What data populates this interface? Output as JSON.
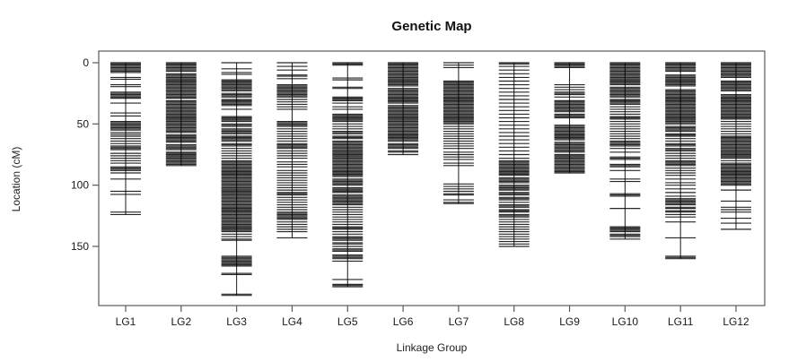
{
  "chart_data": {
    "type": "genetic-map",
    "title": "Genetic Map",
    "xlabel": "Linkage Group",
    "ylabel": "Location (cM)",
    "y_axis": {
      "ticks": [
        0,
        50,
        100,
        150
      ],
      "unit": "cM",
      "direction": "increasing-downward",
      "ylim": [
        0,
        198
      ]
    },
    "frame_color": "#5a5a5a",
    "marker_color": "#000000",
    "linkage_groups": [
      {
        "label": "LG1",
        "length": 124,
        "markers": [
          0,
          1,
          2,
          3,
          4,
          5,
          6,
          7,
          8,
          12,
          13.5,
          18,
          19.5,
          24,
          25,
          26,
          27,
          28,
          29,
          33,
          41,
          43.5,
          48,
          49,
          50,
          51,
          52,
          53,
          54,
          55,
          57,
          58.5,
          60,
          62,
          64,
          66,
          68,
          69,
          70,
          71,
          74,
          76,
          78,
          80,
          82,
          85,
          86,
          87,
          88,
          90,
          95,
          105,
          107.5,
          122,
          124
        ]
      },
      {
        "label": "LG2",
        "length": 84,
        "markers": [
          0,
          1,
          2,
          3,
          4,
          5,
          6,
          7,
          9,
          10,
          11,
          12,
          13,
          14,
          15,
          16,
          17,
          18,
          19,
          20,
          21,
          22,
          23,
          24,
          25,
          26,
          27,
          28,
          29,
          31,
          32,
          33,
          34,
          35,
          36,
          37,
          38,
          39,
          40,
          41,
          42,
          43,
          44,
          45,
          46,
          47,
          48,
          49,
          50,
          51,
          52,
          53,
          54,
          55,
          56,
          57,
          59,
          60,
          61,
          62,
          63,
          64,
          65,
          67,
          68,
          69,
          70,
          71,
          73,
          74,
          75,
          76,
          77,
          78,
          79,
          80,
          81,
          82,
          83,
          84
        ]
      },
      {
        "label": "LG3",
        "length": 190,
        "markers": [
          0,
          5,
          8,
          9.5,
          14,
          15,
          16,
          17,
          18,
          19,
          20,
          21,
          22,
          23,
          25,
          26,
          27,
          28,
          30,
          31,
          32,
          33,
          34,
          35,
          38,
          44,
          45,
          46,
          47,
          48,
          50,
          51,
          52,
          54,
          55,
          56,
          57,
          58,
          60,
          61,
          62,
          63,
          64,
          66,
          67,
          68,
          70,
          72,
          74,
          76,
          78,
          80,
          81,
          82,
          83,
          84,
          85,
          86,
          87,
          88,
          89,
          90,
          91,
          92,
          93,
          94,
          95,
          96,
          97,
          98,
          99,
          100,
          101,
          102,
          103,
          104,
          105,
          106,
          107,
          108,
          109,
          110,
          111,
          112,
          113,
          114,
          115,
          116,
          117,
          118,
          119,
          120,
          121,
          122,
          123,
          124,
          125,
          126,
          127,
          128,
          129,
          130,
          131,
          132,
          133,
          134,
          135,
          136,
          137,
          138,
          140,
          142,
          144,
          145,
          158,
          159,
          160,
          161,
          162,
          163,
          164,
          165,
          166,
          172,
          173,
          189,
          190
        ]
      },
      {
        "label": "LG4",
        "length": 143,
        "markers": [
          0,
          3,
          6,
          10,
          11,
          13,
          18,
          19,
          20,
          21,
          22,
          23,
          24,
          25,
          26,
          27,
          28,
          30,
          32,
          34,
          36,
          38,
          48,
          49,
          50,
          51,
          52,
          54,
          56,
          58,
          60,
          62,
          64,
          66,
          67,
          68,
          69,
          70,
          72,
          74,
          76,
          78,
          81,
          83,
          85,
          88,
          90,
          92,
          94,
          96,
          98,
          100,
          102,
          104,
          106,
          107,
          108,
          110,
          112,
          114,
          116,
          118,
          120,
          122,
          123,
          124,
          125,
          126,
          127,
          128,
          130,
          132,
          134,
          136,
          138,
          143
        ]
      },
      {
        "label": "LG5",
        "length": 183,
        "markers": [
          0,
          1,
          2,
          12.5,
          14,
          20,
          21,
          28,
          29,
          30,
          31,
          33,
          36,
          38,
          42,
          43,
          44,
          45,
          46,
          47,
          48,
          50,
          52,
          54,
          56,
          57,
          58,
          60,
          61,
          62,
          64,
          65,
          66,
          67,
          68,
          69,
          70,
          71,
          72,
          73,
          74,
          75,
          76,
          77,
          78,
          79,
          80,
          81,
          82,
          83,
          84,
          85,
          86,
          87,
          88,
          89,
          90,
          91,
          92,
          93,
          95,
          96,
          97,
          98,
          99,
          100,
          102,
          103,
          104,
          105,
          106,
          108,
          109,
          110,
          111,
          112,
          113,
          114,
          115,
          116,
          118,
          120,
          122,
          124,
          126,
          128,
          130,
          132,
          134,
          135,
          136,
          138,
          140,
          142,
          143,
          144,
          145,
          147,
          148,
          150,
          152,
          153,
          154,
          157,
          158,
          159,
          160,
          162,
          177,
          181,
          182,
          183
        ]
      },
      {
        "label": "LG6",
        "length": 75,
        "markers": [
          0,
          1,
          2,
          3,
          4,
          5,
          6,
          7,
          8,
          9,
          10,
          11,
          12,
          13,
          14,
          15,
          16,
          17,
          18,
          19,
          21,
          22,
          23,
          24,
          25,
          26,
          27,
          28,
          29,
          30,
          31,
          32,
          33,
          35,
          36,
          37,
          38,
          39,
          40,
          41,
          42,
          43,
          44,
          45,
          46,
          47,
          48,
          49,
          50,
          51,
          52,
          53,
          54,
          55,
          56,
          57,
          58,
          59,
          60,
          61,
          62,
          63,
          64,
          66,
          67,
          68,
          69,
          70,
          72,
          73,
          75
        ]
      },
      {
        "label": "LG7",
        "length": 115,
        "markers": [
          0,
          2,
          4,
          15,
          16,
          17,
          18,
          19,
          20,
          21,
          22,
          23,
          24,
          25,
          26,
          27,
          28,
          29,
          30,
          31,
          32,
          33,
          34,
          35,
          36,
          37,
          38,
          39,
          40,
          41,
          42,
          43,
          44,
          45,
          46,
          47,
          48,
          49,
          50,
          52,
          54,
          56,
          58,
          60,
          62,
          64,
          66,
          68,
          70,
          73,
          75,
          77,
          79,
          82,
          84,
          99,
          101,
          103,
          105,
          107,
          108,
          112,
          114,
          115
        ]
      },
      {
        "label": "LG8",
        "length": 150,
        "markers": [
          0,
          1,
          3,
          6,
          9,
          12,
          15,
          18,
          21,
          24,
          27,
          30,
          33,
          36,
          39,
          42,
          45,
          48,
          51,
          54,
          57,
          60,
          63,
          66,
          69,
          72,
          75,
          78,
          80,
          81,
          82,
          83,
          84,
          85,
          86,
          87,
          88,
          89,
          90,
          91,
          92,
          94,
          95,
          96,
          97,
          98,
          100,
          101,
          102,
          103,
          104,
          106,
          107,
          108,
          110,
          111,
          112,
          114,
          116,
          117,
          118,
          120,
          121,
          122,
          124,
          125,
          126,
          128,
          130,
          132,
          134,
          136,
          138,
          140,
          142,
          144,
          146,
          148,
          150
        ]
      },
      {
        "label": "LG9",
        "length": 90,
        "markers": [
          0,
          1,
          2,
          3,
          4,
          18,
          20,
          22,
          24,
          25,
          26,
          28,
          31,
          32,
          33,
          34,
          35,
          36,
          37,
          38,
          39,
          40,
          42,
          43,
          44,
          45,
          51,
          52,
          53,
          54,
          55,
          56,
          57,
          58,
          59,
          60,
          61,
          62,
          63,
          65,
          66,
          67,
          68,
          69,
          70,
          71,
          72,
          73,
          75,
          76,
          77,
          78,
          79,
          80,
          81,
          82,
          83,
          84,
          85,
          86,
          87,
          88,
          89,
          90
        ]
      },
      {
        "label": "LG10",
        "length": 144,
        "markers": [
          0,
          1,
          2,
          3,
          4,
          5,
          6,
          7,
          8,
          9,
          10,
          11,
          12,
          13,
          14,
          15,
          16,
          17,
          18,
          20,
          21,
          22,
          23,
          24,
          25,
          26,
          27,
          28,
          30,
          31,
          32,
          33,
          34,
          36,
          38,
          40,
          42,
          44,
          45,
          46,
          48,
          50,
          52,
          54,
          56,
          58,
          60,
          62,
          64,
          65,
          66,
          67,
          68,
          70,
          73,
          77,
          78,
          79,
          83,
          84,
          85,
          88,
          95,
          97,
          107,
          108,
          109,
          119,
          134,
          135,
          136,
          137,
          138,
          140,
          141,
          142,
          144
        ]
      },
      {
        "label": "LG11",
        "length": 160,
        "markers": [
          0,
          1,
          2,
          3,
          4,
          5,
          6,
          7,
          10,
          11,
          12,
          13,
          14,
          15,
          16,
          17,
          18,
          19,
          22,
          23,
          24,
          25,
          26,
          27,
          28,
          29,
          30,
          31,
          32,
          33,
          34,
          35,
          36,
          37,
          38,
          39,
          40,
          41,
          42,
          43,
          44,
          45,
          46,
          47,
          48,
          49,
          50,
          52,
          53,
          54,
          55,
          56,
          58,
          59,
          60,
          62,
          64,
          66,
          67,
          68,
          70,
          71,
          72,
          74,
          76,
          78,
          80,
          81,
          82,
          83,
          84,
          86,
          88,
          90,
          92,
          95,
          98,
          100,
          103,
          106,
          109,
          111,
          112,
          113,
          114,
          115,
          116,
          118,
          119,
          121,
          122,
          124,
          126,
          130,
          143,
          158,
          159,
          160
        ]
      },
      {
        "label": "LG12",
        "length": 136,
        "markers": [
          0,
          1,
          2,
          3,
          4,
          5,
          6,
          7,
          8,
          9,
          10,
          11,
          12,
          15,
          16,
          17,
          18,
          19,
          20,
          21,
          22,
          23,
          26,
          27,
          28,
          29,
          30,
          31,
          32,
          33,
          34,
          35,
          36,
          37,
          38,
          39,
          40,
          41,
          42,
          43,
          44,
          45,
          46,
          48,
          50,
          52,
          54,
          56,
          58,
          60,
          61,
          62,
          63,
          64,
          65,
          66,
          67,
          68,
          69,
          70,
          71,
          72,
          73,
          74,
          75,
          76,
          77,
          78,
          80,
          82,
          83,
          84,
          85,
          86,
          87,
          88,
          89,
          90,
          91,
          92,
          93,
          94,
          95,
          96,
          97,
          98,
          99,
          100,
          104,
          113,
          118,
          120,
          122,
          127,
          131,
          136
        ]
      }
    ]
  }
}
